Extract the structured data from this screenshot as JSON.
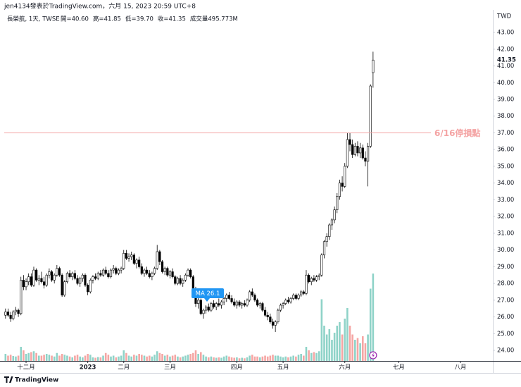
{
  "chart_data": {
    "type": "candlestick",
    "header": "jen4134發表於TradingView.com，六月 15, 2023 20:59 UTC+8",
    "symbol": "長榮航, 1天, TWSE",
    "legend_values": [
      "開=40.60",
      "高=41.85",
      "低=39.70",
      "收=41.35",
      "成交量495.773M"
    ],
    "currency": "TWD",
    "ohlc": [
      [
        26.1,
        26.5,
        25.9,
        26.3
      ],
      [
        26.3,
        26.5,
        26.0,
        26.1
      ],
      [
        26.1,
        26.3,
        25.7,
        25.9
      ],
      [
        25.9,
        26.4,
        25.8,
        26.3
      ],
      [
        26.3,
        26.6,
        26.1,
        26.4
      ],
      [
        26.4,
        26.5,
        26.0,
        26.2
      ],
      [
        26.2,
        28.4,
        26.1,
        28.2
      ],
      [
        28.2,
        28.5,
        27.6,
        27.8
      ],
      [
        27.8,
        28.3,
        27.6,
        28.1
      ],
      [
        28.1,
        28.6,
        27.9,
        28.4
      ],
      [
        28.4,
        28.6,
        27.8,
        27.9
      ],
      [
        27.9,
        29.0,
        27.8,
        28.8
      ],
      [
        28.8,
        28.9,
        28.1,
        28.2
      ],
      [
        28.2,
        28.5,
        27.9,
        28.3
      ],
      [
        28.3,
        28.7,
        28.0,
        28.1
      ],
      [
        28.1,
        28.4,
        27.7,
        27.9
      ],
      [
        27.9,
        28.6,
        27.8,
        28.5
      ],
      [
        28.5,
        28.9,
        28.3,
        28.7
      ],
      [
        28.7,
        28.8,
        28.1,
        28.2
      ],
      [
        28.2,
        28.6,
        28.0,
        28.5
      ],
      [
        28.5,
        29.1,
        28.4,
        28.9
      ],
      [
        28.9,
        29.0,
        28.4,
        28.5
      ],
      [
        28.5,
        28.6,
        27.2,
        27.3
      ],
      [
        27.3,
        28.2,
        27.2,
        28.1
      ],
      [
        28.1,
        28.7,
        28.0,
        28.6
      ],
      [
        28.6,
        28.8,
        28.3,
        28.4
      ],
      [
        28.4,
        28.7,
        28.2,
        28.6
      ],
      [
        28.6,
        28.8,
        28.2,
        28.3
      ],
      [
        28.3,
        28.5,
        27.9,
        28.0
      ],
      [
        28.0,
        28.4,
        27.8,
        28.3
      ],
      [
        28.3,
        28.6,
        28.1,
        28.5
      ],
      [
        28.5,
        28.6,
        27.8,
        27.9
      ],
      [
        27.9,
        28.0,
        27.3,
        27.5
      ],
      [
        27.5,
        28.3,
        27.4,
        28.2
      ],
      [
        28.2,
        28.5,
        28.0,
        28.4
      ],
      [
        28.4,
        28.6,
        28.2,
        28.3
      ],
      [
        28.3,
        28.7,
        28.2,
        28.6
      ],
      [
        28.6,
        28.8,
        28.4,
        28.5
      ],
      [
        28.5,
        28.9,
        28.4,
        28.8
      ],
      [
        28.8,
        29.0,
        28.5,
        28.6
      ],
      [
        28.6,
        28.8,
        28.3,
        28.4
      ],
      [
        28.4,
        28.9,
        28.3,
        28.8
      ],
      [
        28.8,
        29.1,
        28.6,
        28.9
      ],
      [
        28.9,
        29.0,
        28.5,
        28.6
      ],
      [
        28.6,
        28.9,
        28.5,
        28.8
      ],
      [
        28.8,
        29.0,
        28.6,
        28.9
      ],
      [
        28.9,
        30.0,
        28.8,
        29.8
      ],
      [
        29.8,
        30.0,
        29.4,
        29.5
      ],
      [
        29.5,
        29.8,
        29.3,
        29.6
      ],
      [
        29.6,
        29.9,
        29.4,
        29.7
      ],
      [
        29.7,
        29.8,
        29.1,
        29.2
      ],
      [
        29.2,
        29.5,
        28.9,
        29.4
      ],
      [
        29.4,
        29.6,
        28.9,
        29.0
      ],
      [
        29.0,
        29.2,
        28.5,
        28.6
      ],
      [
        28.6,
        28.9,
        28.4,
        28.8
      ],
      [
        28.8,
        29.0,
        28.5,
        28.6
      ],
      [
        28.6,
        28.8,
        28.3,
        28.4
      ],
      [
        28.4,
        28.7,
        28.2,
        28.6
      ],
      [
        28.6,
        29.0,
        28.5,
        28.9
      ],
      [
        28.9,
        30.3,
        28.8,
        29.9
      ],
      [
        29.9,
        30.0,
        29.1,
        29.3
      ],
      [
        29.3,
        29.4,
        28.6,
        28.7
      ],
      [
        28.7,
        29.0,
        28.5,
        28.9
      ],
      [
        28.9,
        29.0,
        28.4,
        28.5
      ],
      [
        28.5,
        28.8,
        28.3,
        28.7
      ],
      [
        28.7,
        28.9,
        28.3,
        28.4
      ],
      [
        28.4,
        28.5,
        27.9,
        28.0
      ],
      [
        28.0,
        28.4,
        27.9,
        28.3
      ],
      [
        28.3,
        28.5,
        27.9,
        28.0
      ],
      [
        28.0,
        28.3,
        27.8,
        28.2
      ],
      [
        28.2,
        28.6,
        28.1,
        28.5
      ],
      [
        28.5,
        28.9,
        28.4,
        28.8
      ],
      [
        28.8,
        28.9,
        28.3,
        28.4
      ],
      [
        28.4,
        28.5,
        27.5,
        27.6
      ],
      [
        27.6,
        27.8,
        26.6,
        26.8
      ],
      [
        26.8,
        27.2,
        26.5,
        27.0
      ],
      [
        27.0,
        27.1,
        26.1,
        26.2
      ],
      [
        26.2,
        26.5,
        25.9,
        26.4
      ],
      [
        26.4,
        26.7,
        26.2,
        26.6
      ],
      [
        26.6,
        26.8,
        26.3,
        26.4
      ],
      [
        26.4,
        26.9,
        26.3,
        26.8
      ],
      [
        26.8,
        27.0,
        26.5,
        26.6
      ],
      [
        26.6,
        26.9,
        26.4,
        26.8
      ],
      [
        26.8,
        27.1,
        26.6,
        26.7
      ],
      [
        26.7,
        27.0,
        26.5,
        26.9
      ],
      [
        26.9,
        27.2,
        26.7,
        27.1
      ],
      [
        27.1,
        27.4,
        26.9,
        27.3
      ],
      [
        27.3,
        27.5,
        27.0,
        27.1
      ],
      [
        27.1,
        27.3,
        26.8,
        26.9
      ],
      [
        26.9,
        27.1,
        26.6,
        26.7
      ],
      [
        26.7,
        27.0,
        26.5,
        26.9
      ],
      [
        26.9,
        27.0,
        26.6,
        26.7
      ],
      [
        26.7,
        26.9,
        26.5,
        26.8
      ],
      [
        26.8,
        27.0,
        26.6,
        26.7
      ],
      [
        26.7,
        27.1,
        26.6,
        27.0
      ],
      [
        27.0,
        27.6,
        26.9,
        27.5
      ],
      [
        27.5,
        27.7,
        27.2,
        27.3
      ],
      [
        27.3,
        27.4,
        26.9,
        27.0
      ],
      [
        27.0,
        27.1,
        26.6,
        26.7
      ],
      [
        26.7,
        26.9,
        26.5,
        26.8
      ],
      [
        26.8,
        26.9,
        26.3,
        26.4
      ],
      [
        26.4,
        26.6,
        26.0,
        26.1
      ],
      [
        26.1,
        26.3,
        25.8,
        26.0
      ],
      [
        26.0,
        26.2,
        25.6,
        25.7
      ],
      [
        25.7,
        25.9,
        25.3,
        25.5
      ],
      [
        25.5,
        25.8,
        25.1,
        25.7
      ],
      [
        25.7,
        26.5,
        25.6,
        26.4
      ],
      [
        26.4,
        26.8,
        26.3,
        26.7
      ],
      [
        26.7,
        26.9,
        26.5,
        26.8
      ],
      [
        26.8,
        27.1,
        26.7,
        27.0
      ],
      [
        27.0,
        27.2,
        26.8,
        26.9
      ],
      [
        26.9,
        27.2,
        26.8,
        27.1
      ],
      [
        27.1,
        27.4,
        27.0,
        27.3
      ],
      [
        27.3,
        27.4,
        27.0,
        27.1
      ],
      [
        27.1,
        27.4,
        27.0,
        27.3
      ],
      [
        27.3,
        27.6,
        27.2,
        27.5
      ],
      [
        27.5,
        27.6,
        27.3,
        27.4
      ],
      [
        27.4,
        28.8,
        27.3,
        28.5
      ],
      [
        28.5,
        28.6,
        28.0,
        28.1
      ],
      [
        28.1,
        28.4,
        27.9,
        28.3
      ],
      [
        28.3,
        28.5,
        28.1,
        28.2
      ],
      [
        28.2,
        28.5,
        28.1,
        28.4
      ],
      [
        28.4,
        28.6,
        28.2,
        28.5
      ],
      [
        28.5,
        29.8,
        28.4,
        29.7
      ],
      [
        29.7,
        30.6,
        29.5,
        30.5
      ],
      [
        30.5,
        31.0,
        30.2,
        30.8
      ],
      [
        30.8,
        31.6,
        30.6,
        31.5
      ],
      [
        31.5,
        31.9,
        31.2,
        31.8
      ],
      [
        31.8,
        32.6,
        31.6,
        32.4
      ],
      [
        32.4,
        33.4,
        32.2,
        33.2
      ],
      [
        33.2,
        34.2,
        33.0,
        34.0
      ],
      [
        34.0,
        34.4,
        33.5,
        33.8
      ],
      [
        33.8,
        35.2,
        33.7,
        35.0
      ],
      [
        35.0,
        37.0,
        34.9,
        36.6
      ],
      [
        36.6,
        37.0,
        35.9,
        36.3
      ],
      [
        36.3,
        36.6,
        35.5,
        35.7
      ],
      [
        35.7,
        36.4,
        35.6,
        36.2
      ],
      [
        36.2,
        36.5,
        35.6,
        35.8
      ],
      [
        35.8,
        36.4,
        35.5,
        36.1
      ],
      [
        36.1,
        36.3,
        35.4,
        35.5
      ],
      [
        35.5,
        35.9,
        35.0,
        35.3
      ],
      [
        35.3,
        36.4,
        33.8,
        36.2
      ],
      [
        36.2,
        39.9,
        36.1,
        39.8
      ],
      [
        40.6,
        41.85,
        39.7,
        41.35
      ]
    ],
    "volumes": [
      40,
      30,
      35,
      28,
      25,
      30,
      80,
      60,
      40,
      45,
      50,
      55,
      45,
      30,
      30,
      35,
      40,
      35,
      30,
      25,
      45,
      30,
      40,
      35,
      30,
      25,
      20,
      30,
      35,
      25,
      20,
      30,
      40,
      35,
      20,
      18,
      22,
      20,
      30,
      45,
      35,
      25,
      30,
      20,
      25,
      30,
      60,
      45,
      30,
      25,
      35,
      30,
      40,
      35,
      30,
      25,
      30,
      25,
      35,
      55,
      45,
      40,
      30,
      35,
      25,
      30,
      35,
      25,
      20,
      25,
      30,
      35,
      40,
      45,
      60,
      40,
      50,
      35,
      25,
      20,
      25,
      20,
      18,
      20,
      18,
      25,
      30,
      25,
      20,
      18,
      20,
      15,
      18,
      15,
      20,
      30,
      35,
      25,
      25,
      20,
      25,
      30,
      25,
      30,
      35,
      30,
      30,
      25,
      20,
      25,
      20,
      25,
      30,
      25,
      35,
      40,
      30,
      80,
      60,
      45,
      50,
      45,
      55,
      350,
      200,
      150,
      180,
      120,
      160,
      200,
      220,
      150,
      240,
      300,
      200,
      150,
      120,
      130,
      100,
      140,
      100,
      150,
      410,
      495.773
    ],
    "volume_lim": [
      0,
      1992
    ],
    "up_color": "#ffffff",
    "down_color": "#000000",
    "candle_outline": "#000000",
    "volume_up_color": "#8fd3c8",
    "volume_down_color": "#f5a6a4",
    "xlim": [
      -0.5,
      189.6
    ],
    "xticks": [
      {
        "value": 8,
        "label": "十二月"
      },
      {
        "value": 32,
        "label": "2023"
      },
      {
        "value": 46,
        "label": "二月"
      },
      {
        "value": 64,
        "label": "三月"
      },
      {
        "value": 90,
        "label": "四月"
      },
      {
        "value": 108,
        "label": "五月"
      },
      {
        "value": 132,
        "label": "六月"
      },
      {
        "value": 153,
        "label": "七月"
      },
      {
        "value": 177,
        "label": "八月"
      }
    ],
    "ylim": [
      23.37,
      44.35
    ],
    "yticks": [
      {
        "value": 24,
        "label": "24.00"
      },
      {
        "value": 25,
        "label": "25.00"
      },
      {
        "value": 26,
        "label": "26.00"
      },
      {
        "value": 27,
        "label": "27.00"
      },
      {
        "value": 28,
        "label": "28.00"
      },
      {
        "value": 29,
        "label": "29.00"
      },
      {
        "value": 30,
        "label": "30.00"
      },
      {
        "value": 31,
        "label": "31.00"
      },
      {
        "value": 32,
        "label": "32.00"
      },
      {
        "value": 33,
        "label": "33.00"
      },
      {
        "value": 34,
        "label": "34.00"
      },
      {
        "value": 35,
        "label": "35.00"
      },
      {
        "value": 36,
        "label": "36.00"
      },
      {
        "value": 37,
        "label": "37.00"
      },
      {
        "value": 38,
        "label": "38.00"
      },
      {
        "value": 39,
        "label": "39.00"
      },
      {
        "value": 40,
        "label": "40.00"
      },
      {
        "value": 41,
        "label": "41.00"
      },
      {
        "value": 42,
        "label": "42.00"
      },
      {
        "value": 43,
        "label": "43.00"
      }
    ],
    "last_price": 41.35,
    "hline": {
      "value": 37,
      "label": "6/16停損點",
      "color": "#f4a3a3"
    },
    "ma_label": "MA 26.1",
    "brand": "TradingView",
    "grid": false
  }
}
